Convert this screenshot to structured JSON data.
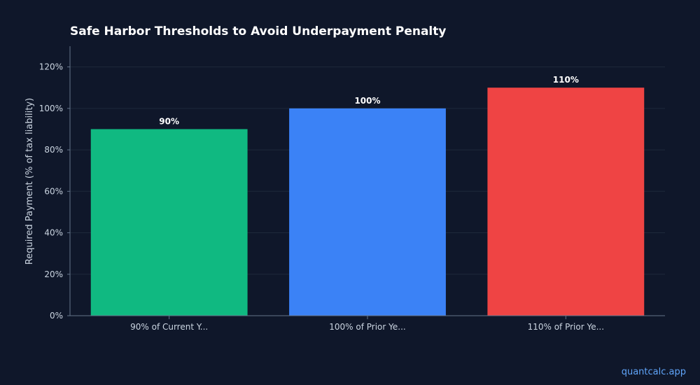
{
  "chart_data": {
    "type": "bar",
    "title": "Safe Harbor Thresholds to Avoid Underpayment Penalty",
    "xlabel": "",
    "ylabel": "Required Payment (% of tax liability)",
    "categories": [
      "90% of Current Y...",
      "100% of Prior Ye...",
      "110% of Prior Ye..."
    ],
    "values": [
      90,
      100,
      110
    ],
    "data_labels": [
      "90%",
      "100%",
      "110%"
    ],
    "colors": [
      "#10b981",
      "#3b82f6",
      "#ef4444"
    ],
    "ylim": [
      0,
      130
    ],
    "yticks": [
      0,
      20,
      40,
      60,
      80,
      100,
      120
    ],
    "ytick_labels": [
      "0%",
      "20%",
      "40%",
      "60%",
      "80%",
      "100%",
      "120%"
    ],
    "grid": true,
    "legend": "none"
  },
  "footer": {
    "watermark": "quantcalc.app"
  }
}
